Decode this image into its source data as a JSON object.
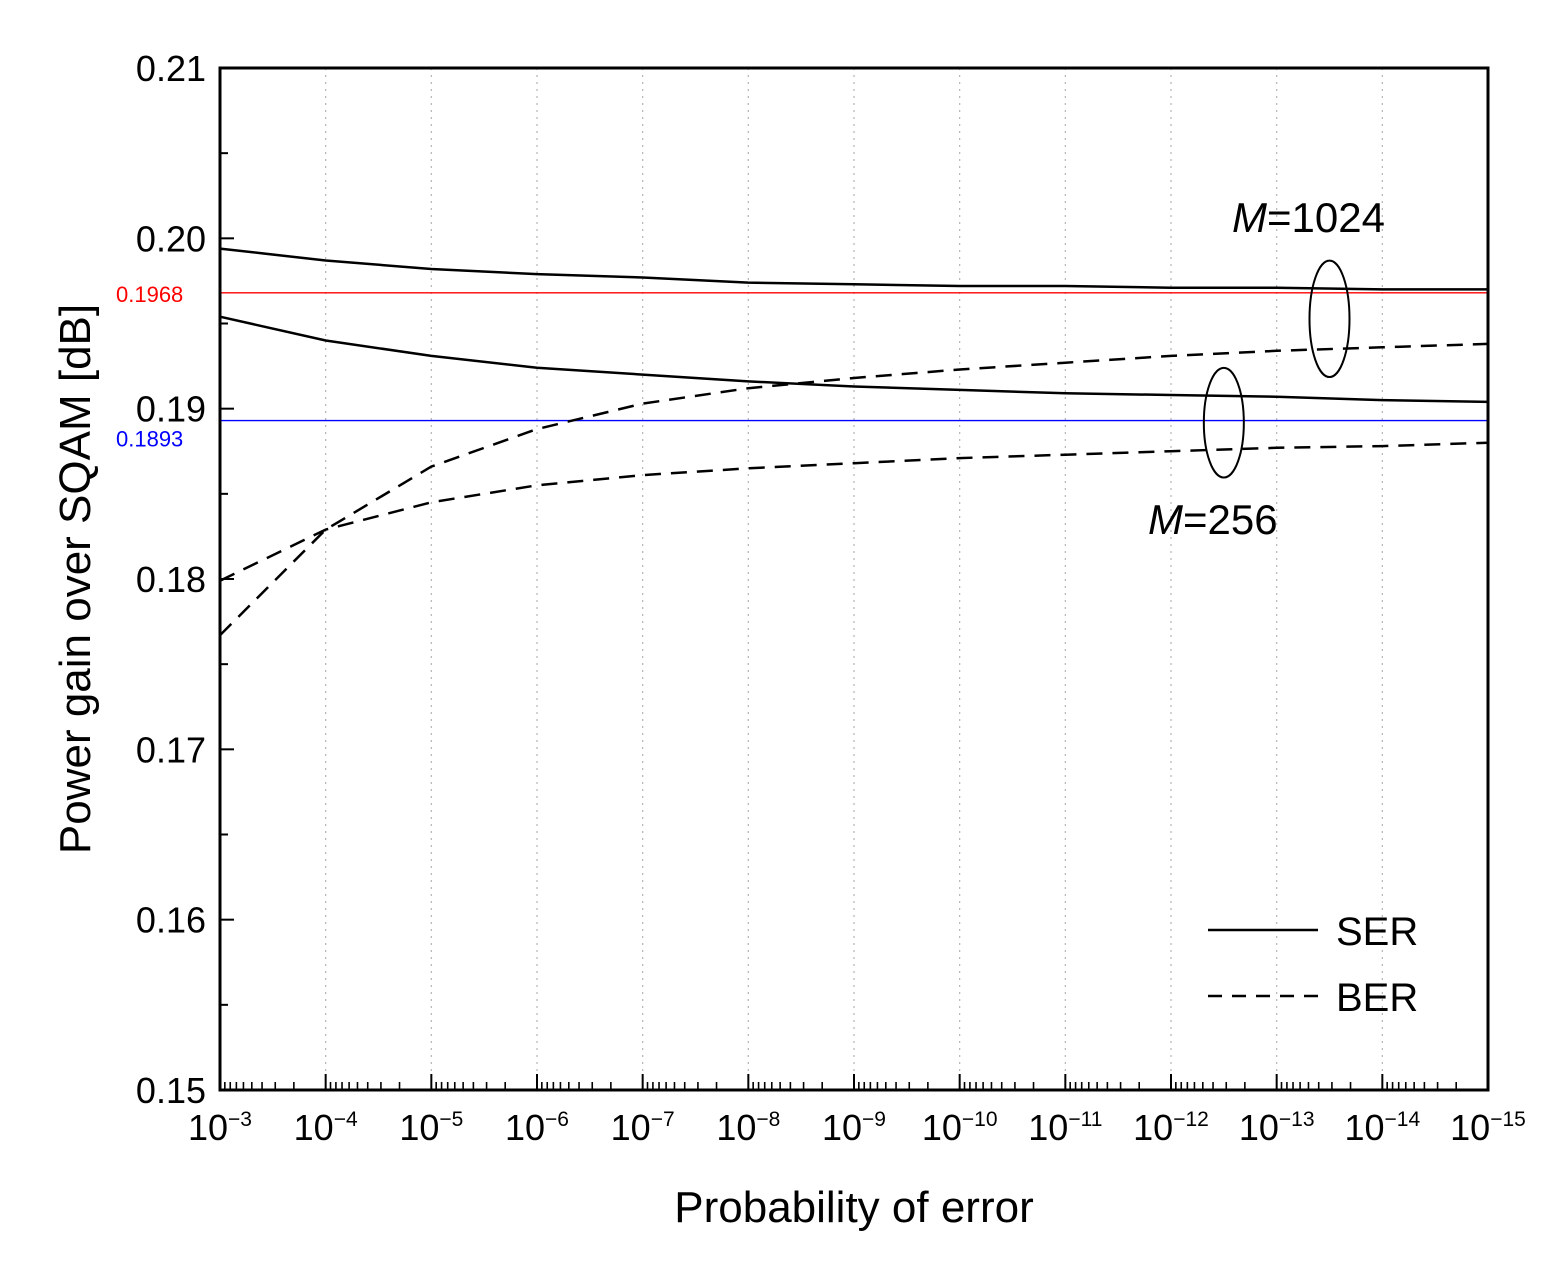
{
  "chart_data": {
    "type": "line",
    "xlabel": "Probability of error",
    "ylabel": "Power gain over SQAM [dB]",
    "x_scale": "log",
    "x_reversed": true,
    "xlim": [
      0.001,
      1e-15
    ],
    "ylim": [
      0.15,
      0.21
    ],
    "x_ticks": [
      {
        "base": "10",
        "exp": "−3"
      },
      {
        "base": "10",
        "exp": "−4"
      },
      {
        "base": "10",
        "exp": "−5"
      },
      {
        "base": "10",
        "exp": "−6"
      },
      {
        "base": "10",
        "exp": "−7"
      },
      {
        "base": "10",
        "exp": "−8"
      },
      {
        "base": "10",
        "exp": "−9"
      },
      {
        "base": "10",
        "exp": "−10"
      },
      {
        "base": "10",
        "exp": "−11"
      },
      {
        "base": "10",
        "exp": "−12"
      },
      {
        "base": "10",
        "exp": "−13"
      },
      {
        "base": "10",
        "exp": "−14"
      },
      {
        "base": "10",
        "exp": "−15"
      }
    ],
    "y_ticks": [
      "0.15",
      "0.16",
      "0.17",
      "0.18",
      "0.19",
      "0.20",
      "0.21"
    ],
    "grid": "vertical dotted",
    "legend": {
      "position": "bottom-right",
      "entries": [
        {
          "label": "SER",
          "style": "solid"
        },
        {
          "label": "BER",
          "style": "dashed"
        }
      ]
    },
    "reference_lines": [
      {
        "value": 0.1968,
        "label": "0.1968",
        "color": "#ff0000"
      },
      {
        "value": 0.1893,
        "label": "0.1893",
        "color": "#0000ff"
      }
    ],
    "annotations": [
      {
        "italic": "M",
        "text": "=1024"
      },
      {
        "italic": "M",
        "text": "=256"
      }
    ],
    "series": [
      {
        "group": "M=1024",
        "style": "solid",
        "x": [
          0.001,
          0.0001,
          1e-05,
          1e-06,
          1e-07,
          1e-08,
          1e-09,
          1e-10,
          1e-11,
          1e-12,
          1e-13,
          1e-14,
          1e-15
        ],
        "y": [
          0.1994,
          0.1987,
          0.1982,
          0.1979,
          0.1977,
          0.1974,
          0.1973,
          0.1972,
          0.1972,
          0.1971,
          0.1971,
          0.197,
          0.197
        ]
      },
      {
        "group": "M=1024",
        "style": "dashed",
        "x": [
          0.001,
          0.0001,
          1e-05,
          1e-06,
          1e-07,
          1e-08,
          1e-09,
          1e-10,
          1e-11,
          1e-12,
          1e-13,
          1e-14,
          1e-15
        ],
        "y": [
          0.1767,
          0.1829,
          0.1866,
          0.1888,
          0.1903,
          0.1912,
          0.1918,
          0.1923,
          0.1927,
          0.1931,
          0.1934,
          0.1936,
          0.1938
        ]
      },
      {
        "group": "M=256",
        "style": "solid",
        "x": [
          0.001,
          0.0001,
          1e-05,
          1e-06,
          1e-07,
          1e-08,
          1e-09,
          1e-10,
          1e-11,
          1e-12,
          1e-13,
          1e-14,
          1e-15
        ],
        "y": [
          0.1954,
          0.194,
          0.1931,
          0.1924,
          0.192,
          0.1916,
          0.1913,
          0.1911,
          0.1909,
          0.1908,
          0.1907,
          0.1905,
          0.1904
        ]
      },
      {
        "group": "M=256",
        "style": "dashed",
        "x": [
          0.001,
          0.0001,
          1e-05,
          1e-06,
          1e-07,
          1e-08,
          1e-09,
          1e-10,
          1e-11,
          1e-12,
          1e-13,
          1e-14,
          1e-15
        ],
        "y": [
          0.1799,
          0.1829,
          0.1845,
          0.1855,
          0.1861,
          0.1865,
          0.1868,
          0.1871,
          0.1873,
          0.1875,
          0.1877,
          0.1878,
          0.188
        ]
      }
    ]
  }
}
